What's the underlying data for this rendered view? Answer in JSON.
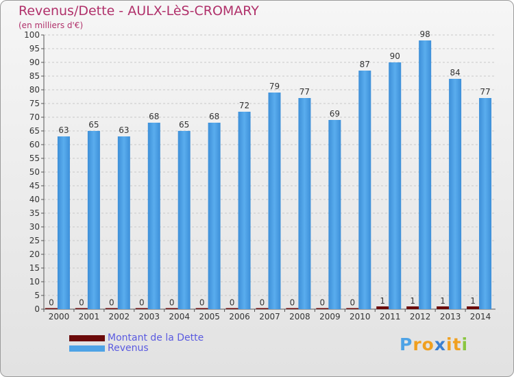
{
  "header": {
    "title": "Revenus/Dette - AULX-LèS-CROMARY",
    "subtitle": "(en milliers d'€)"
  },
  "chart_data": {
    "type": "bar",
    "categories": [
      "2000",
      "2001",
      "2002",
      "2003",
      "2004",
      "2005",
      "2006",
      "2007",
      "2008",
      "2009",
      "2010",
      "2011",
      "2012",
      "2013",
      "2014"
    ],
    "series": [
      {
        "name": "Montant de la Dette",
        "values": [
          0,
          0,
          0,
          0,
          0,
          0,
          0,
          0,
          0,
          0,
          0,
          1,
          1,
          1,
          1
        ],
        "color": "#6b0a0a"
      },
      {
        "name": "Revenus",
        "values": [
          63,
          65,
          63,
          68,
          65,
          68,
          72,
          79,
          77,
          69,
          87,
          90,
          98,
          84,
          77
        ],
        "color": "#4ea3e6"
      }
    ],
    "ylim": [
      0,
      100
    ],
    "yticks": [
      0,
      5,
      10,
      15,
      20,
      25,
      30,
      35,
      40,
      45,
      50,
      55,
      60,
      65,
      70,
      75,
      80,
      85,
      90,
      95,
      100
    ],
    "grid": true,
    "legend_position": "bottom-left"
  },
  "legend": [
    {
      "label": "Montant de la Dette",
      "color": "#6b0a0a"
    },
    {
      "label": "Revenus",
      "color": "#4ea3e6"
    }
  ],
  "brand": {
    "letters": [
      "P",
      "r",
      "o",
      "x",
      "i",
      "t",
      "i"
    ],
    "colors": [
      "#4ea3e6",
      "#f0a020",
      "#f0a020",
      "#3a7fd0",
      "#f0a020",
      "#f0a020",
      "#8ac640"
    ]
  }
}
